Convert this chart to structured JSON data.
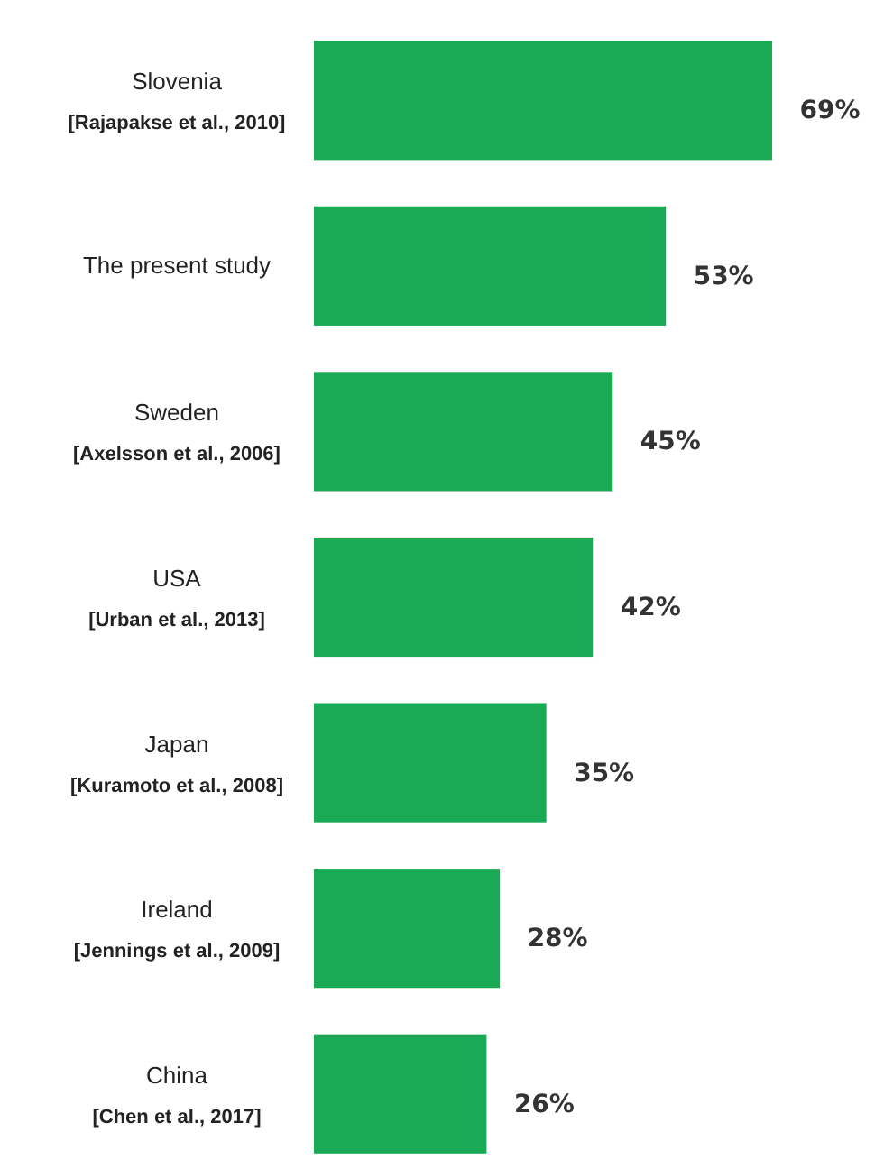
{
  "chart_data": {
    "type": "bar",
    "orientation": "horizontal",
    "categories": [
      "Slovenia\n[Rajapakse et al., 2010]",
      "The present study",
      "Sweden\n[Axelsson et al., 2006]",
      "USA\n[Urban et al., 2013]",
      "Japan\n[Kuramoto et al., 2008]",
      "Ireland\n[Jennings et al., 2009]",
      "China\n[Chen et al., 2017]"
    ],
    "values": [
      69,
      53,
      45,
      42,
      35,
      28,
      26
    ],
    "value_labels": [
      "69%",
      "53%",
      "45%",
      "42%",
      "35%",
      "28%",
      "26%"
    ],
    "color": "#1aaa55"
  }
}
